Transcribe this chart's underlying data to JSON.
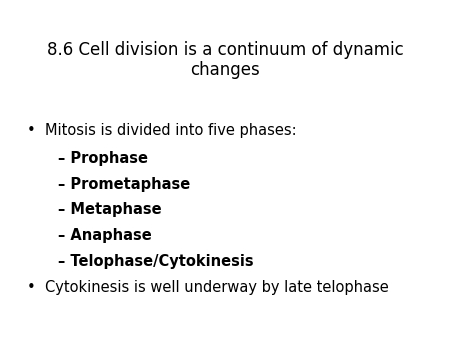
{
  "title": "8.6 Cell division is a continuum of dynamic\nchanges",
  "title_fontsize": 12,
  "title_color": "#000000",
  "background_color": "#ffffff",
  "line_color": "#00008B",
  "bullet1": "Mitosis is divided into five phases:",
  "bullet1_fontsize": 10.5,
  "sub_items": [
    "Prophase",
    "Prometaphase",
    "Metaphase",
    "Anaphase",
    "Telophase/Cytokinesis"
  ],
  "sub_fontsize": 10.5,
  "bullet2": "Cytokinesis is well underway by late telophase",
  "bullet2_fontsize": 10.5
}
